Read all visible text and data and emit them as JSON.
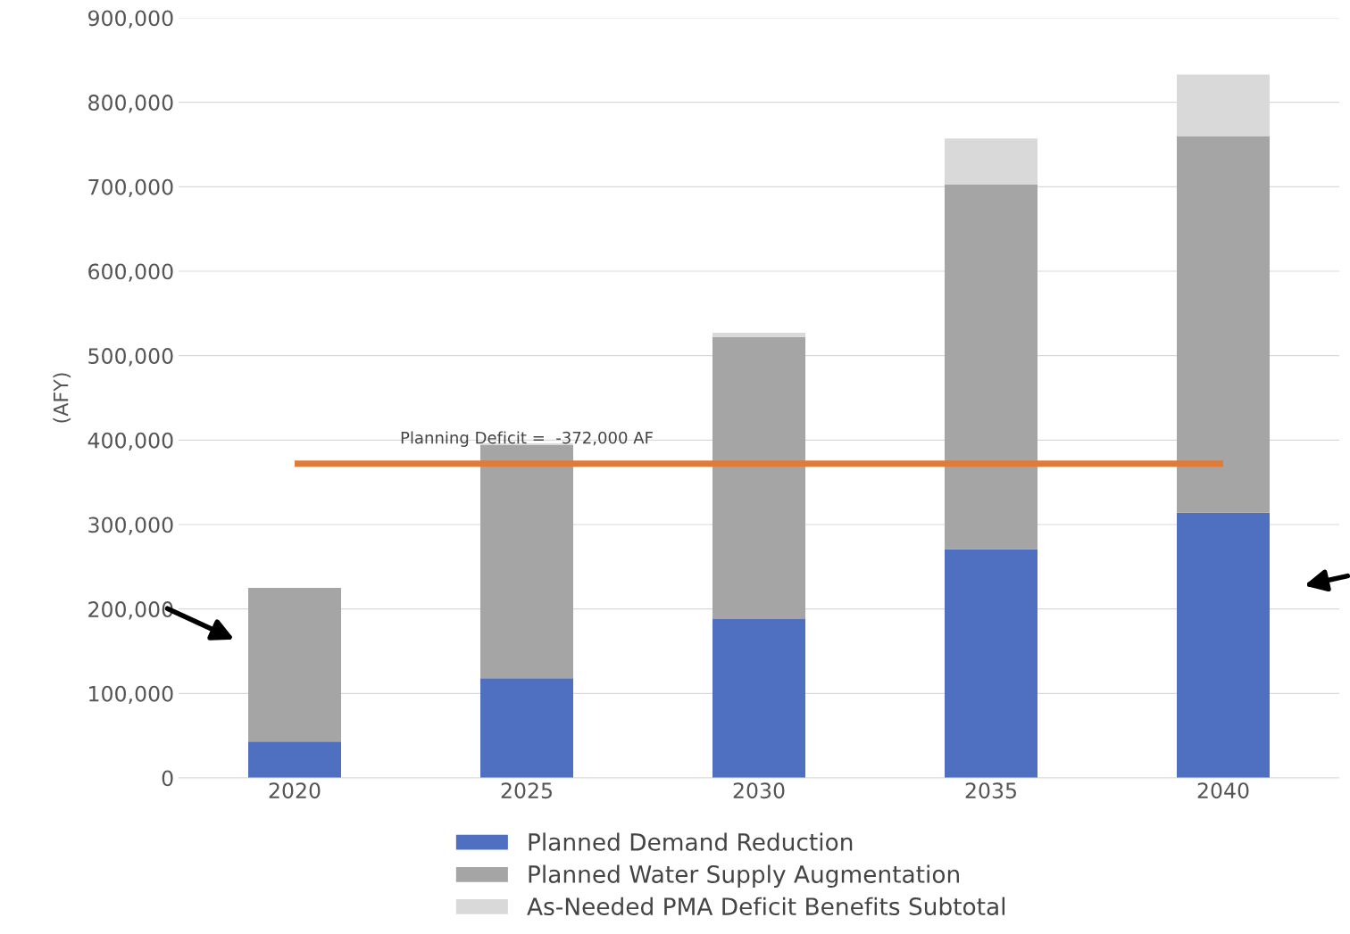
{
  "chart_data": {
    "type": "bar",
    "stacked": true,
    "ylabel": "(AFY)",
    "categories": [
      "2020",
      "2025",
      "2030",
      "2035",
      "2040"
    ],
    "series": [
      {
        "name": "Planned Demand Reduction",
        "color": "#4f70c1",
        "values": [
          43000,
          118000,
          188000,
          271000,
          314000
        ]
      },
      {
        "name": "Planned Water Supply Augmentation",
        "color": "#a5a5a5",
        "values": [
          182000,
          276000,
          334000,
          432000,
          446000
        ]
      },
      {
        "name": "As-Needed PMA Deficit Benefits Subtotal",
        "color": "#d9d9d9",
        "values": [
          0,
          2000,
          5000,
          54000,
          73000
        ]
      }
    ],
    "ylim": [
      0,
      900000
    ],
    "yticks": [
      {
        "value": 0,
        "label": "0"
      },
      {
        "value": 100000,
        "label": "100,000"
      },
      {
        "value": 200000,
        "label": "200,000"
      },
      {
        "value": 300000,
        "label": "300,000"
      },
      {
        "value": 400000,
        "label": "400,000"
      },
      {
        "value": 500000,
        "label": "500,000"
      },
      {
        "value": 600000,
        "label": "600,000"
      },
      {
        "value": 700000,
        "label": "700,000"
      },
      {
        "value": 800000,
        "label": "800,000"
      },
      {
        "value": 900000,
        "label": "900,000"
      }
    ],
    "ref_lines": [
      {
        "axis": "y",
        "value": 372000,
        "color": "#e07b39"
      }
    ],
    "annotations": [
      "Planning Deficit =  -372,000 AF"
    ],
    "grid": "y",
    "legend": "bottom"
  }
}
